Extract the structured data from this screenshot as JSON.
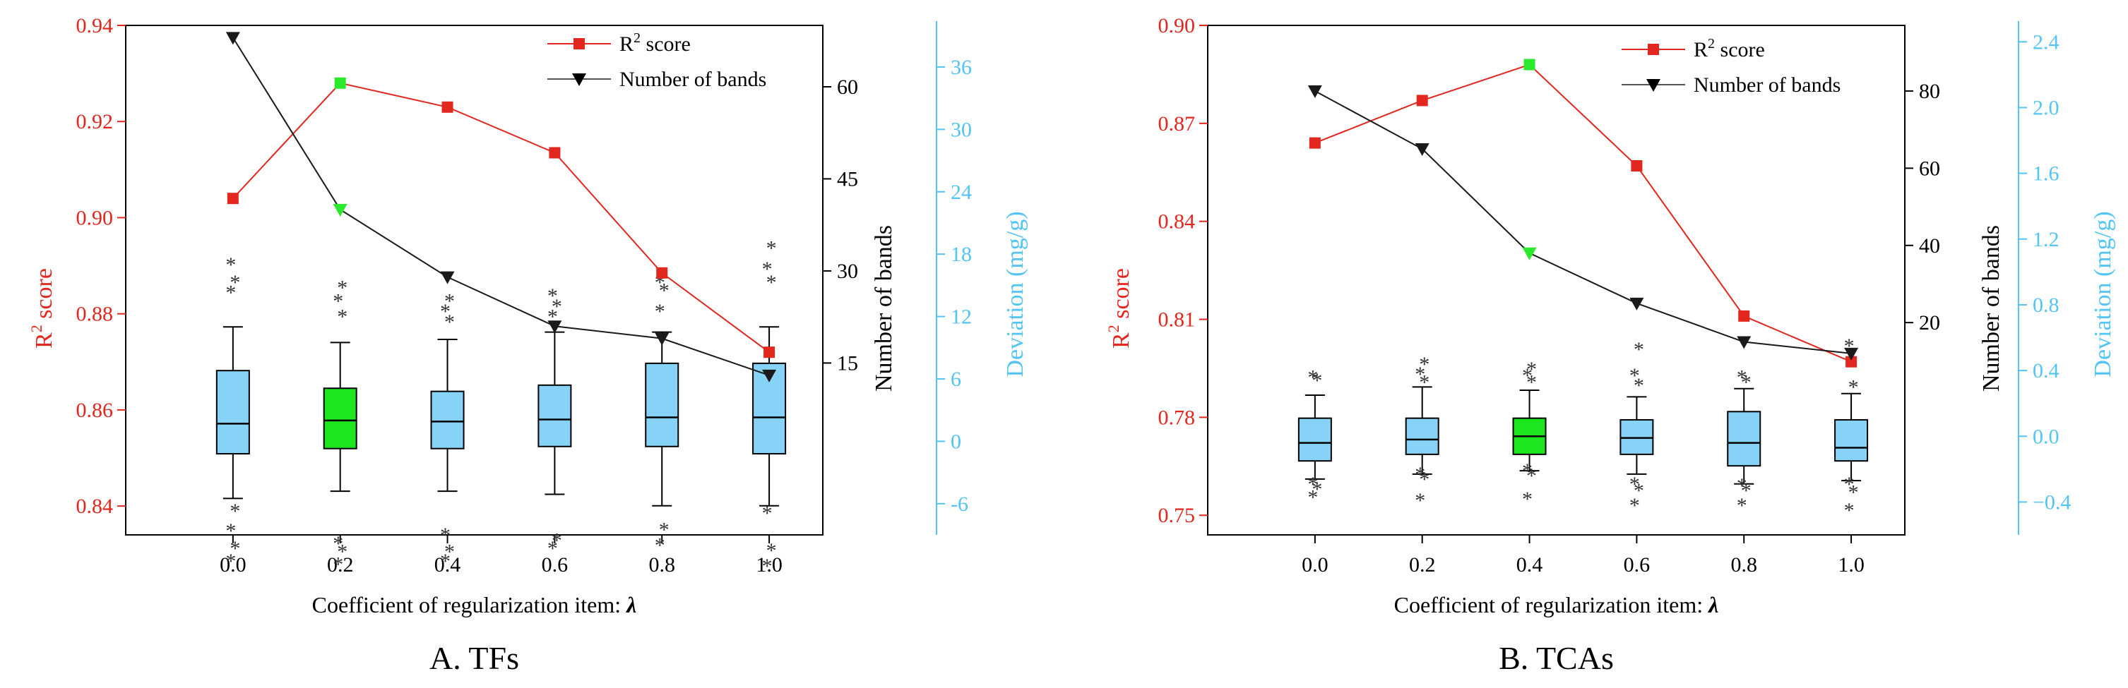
{
  "colors": {
    "r2": "#e3261e",
    "bands": "#1a1a1a",
    "deviation_axis": "#52c4f5",
    "box_default": "#86d3f7",
    "box_selected": "#1ee61e",
    "selected_marker": "#2bea2b"
  },
  "chart_data": [
    {
      "panel_label": "A. TFs",
      "type": "line+box",
      "xlabel": "Coefficient of regularization item: ",
      "xlabel_symbol": "λ",
      "x": [
        0.0,
        0.2,
        0.4,
        0.6,
        0.8,
        1.0
      ],
      "x_tick_labels": [
        "0.0",
        "0.2",
        "0.4",
        "0.6",
        "0.8",
        "1.0"
      ],
      "xlim": [
        -0.2,
        1.1
      ],
      "selected_index": 1,
      "left_axis": {
        "label": "R",
        "label_sup": "2",
        "label_suffix": " score",
        "ylim": [
          0.834,
          0.94
        ],
        "ticks": [
          0.84,
          0.86,
          0.88,
          0.9,
          0.92,
          0.94
        ],
        "tick_labels": [
          "0.84",
          "0.86",
          "0.88",
          "0.90",
          "0.92",
          "0.94"
        ]
      },
      "bands_axis": {
        "label": "Number of bands",
        "ylim": [
          -13,
          70
        ],
        "ticks": [
          15,
          30,
          45,
          60
        ],
        "tick_labels": [
          "15",
          "30",
          "45",
          "60"
        ]
      },
      "deviation_axis": {
        "label": "Deviation (mg/g)",
        "ylim": [
          -9,
          40
        ],
        "ticks": [
          -6,
          0,
          6,
          12,
          18,
          24,
          30,
          36
        ],
        "tick_labels": [
          "-6",
          "0",
          "6",
          "12",
          "18",
          "24",
          "30",
          "36"
        ]
      },
      "series": [
        {
          "name": "R",
          "name_sup": "2",
          "name_suffix": " score",
          "axis": "left",
          "marker": "square",
          "values": [
            0.904,
            0.928,
            0.923,
            0.9135,
            0.8885,
            0.872
          ]
        },
        {
          "name": "Number of bands",
          "axis": "bands",
          "marker": "triangle-down",
          "values": [
            68,
            40,
            29,
            21,
            19,
            13
          ]
        }
      ],
      "boxes": [
        {
          "q1": -1.2,
          "median": 1.7,
          "q3": 6.8,
          "lo": -5.5,
          "hi": 11.0,
          "outliers": [
            -11.5,
            -10.3,
            -8.6,
            -6.7,
            14.3,
            15.3,
            17.0
          ]
        },
        {
          "q1": -0.7,
          "median": 2.0,
          "q3": 5.1,
          "lo": -4.8,
          "hi": 9.5,
          "outliers": [
            -11.8,
            -10.6,
            -9.8,
            12.0,
            13.5,
            14.8
          ]
        },
        {
          "q1": -0.7,
          "median": 1.9,
          "q3": 4.8,
          "lo": -4.8,
          "hi": 9.8,
          "outliers": [
            -11.5,
            -10.6,
            -9.0,
            11.5,
            12.5,
            13.5
          ]
        },
        {
          "q1": -0.5,
          "median": 2.1,
          "q3": 5.4,
          "lo": -5.1,
          "hi": 10.5,
          "outliers": [
            -10.3,
            -9.5,
            12.0,
            13.0,
            14.0
          ]
        },
        {
          "q1": -0.5,
          "median": 2.3,
          "q3": 7.5,
          "lo": -6.2,
          "hi": 10.5,
          "outliers": [
            -10.0,
            -8.5,
            12.5,
            14.5,
            15.3
          ]
        },
        {
          "q1": -1.2,
          "median": 2.3,
          "q3": 7.5,
          "lo": -6.2,
          "hi": 11.0,
          "outliers": [
            -12.0,
            -10.5,
            -6.9,
            15.3,
            16.6,
            18.6
          ]
        }
      ]
    },
    {
      "panel_label": "B. TCAs",
      "type": "line+box",
      "xlabel": "Coefficient of regularization item: ",
      "xlabel_symbol": "λ",
      "x": [
        0.0,
        0.2,
        0.4,
        0.6,
        0.8,
        1.0
      ],
      "x_tick_labels": [
        "0.0",
        "0.2",
        "0.4",
        "0.6",
        "0.8",
        "1.0"
      ],
      "xlim": [
        -0.2,
        1.1
      ],
      "selected_index": 2,
      "left_axis": {
        "label": "R",
        "label_sup": "2",
        "label_suffix": " score",
        "ylim": [
          0.744,
          0.9
        ],
        "ticks": [
          0.75,
          0.78,
          0.81,
          0.84,
          0.87,
          0.9
        ],
        "tick_labels": [
          "0.75",
          "0.78",
          "0.81",
          "0.84",
          "0.87",
          "0.90"
        ]
      },
      "bands_axis": {
        "label": "Number of bands",
        "ylim": [
          -35,
          97
        ],
        "ticks": [
          20,
          40,
          60,
          80
        ],
        "tick_labels": [
          "20",
          "40",
          "60",
          "80"
        ]
      },
      "deviation_axis": {
        "label": "Deviation (mg/g)",
        "ylim": [
          -0.6,
          2.5
        ],
        "ticks": [
          -0.4,
          0.0,
          0.4,
          0.8,
          1.2,
          1.6,
          2.0,
          2.4
        ],
        "tick_labels": [
          "−0.4",
          "0.0",
          "0.4",
          "0.8",
          "1.2",
          "1.6",
          "2.0",
          "2.4"
        ]
      },
      "series": [
        {
          "name": "R",
          "name_sup": "2",
          "name_suffix": " score",
          "axis": "left",
          "marker": "square",
          "values": [
            0.864,
            0.877,
            0.888,
            0.857,
            0.811,
            0.797
          ]
        },
        {
          "name": "Number of bands",
          "axis": "bands",
          "marker": "triangle-down",
          "values": [
            80,
            65,
            38,
            25,
            15,
            12
          ]
        }
      ],
      "boxes": [
        {
          "q1": -0.15,
          "median": -0.04,
          "q3": 0.11,
          "lo": -0.26,
          "hi": 0.25,
          "outliers": [
            -0.37,
            -0.32,
            -0.29,
            0.34,
            0.36
          ]
        },
        {
          "q1": -0.11,
          "median": -0.02,
          "q3": 0.11,
          "lo": -0.23,
          "hi": 0.3,
          "outliers": [
            -0.39,
            -0.26,
            -0.23,
            0.33,
            0.38,
            0.44
          ]
        },
        {
          "q1": -0.11,
          "median": 0.0,
          "q3": 0.11,
          "lo": -0.21,
          "hi": 0.28,
          "outliers": [
            -0.38,
            -0.24,
            -0.21,
            0.33,
            0.37,
            0.41
          ]
        },
        {
          "q1": -0.11,
          "median": -0.01,
          "q3": 0.1,
          "lo": -0.23,
          "hi": 0.24,
          "outliers": [
            -0.42,
            -0.33,
            -0.29,
            0.31,
            0.37,
            0.53
          ]
        },
        {
          "q1": -0.18,
          "median": -0.04,
          "q3": 0.15,
          "lo": -0.29,
          "hi": 0.29,
          "outliers": [
            -0.42,
            -0.33,
            -0.3,
            0.33,
            0.36
          ]
        },
        {
          "q1": -0.15,
          "median": -0.07,
          "q3": 0.1,
          "lo": -0.27,
          "hi": 0.26,
          "outliers": [
            -0.45,
            -0.34,
            -0.29,
            0.3,
            0.55
          ]
        }
      ]
    }
  ]
}
